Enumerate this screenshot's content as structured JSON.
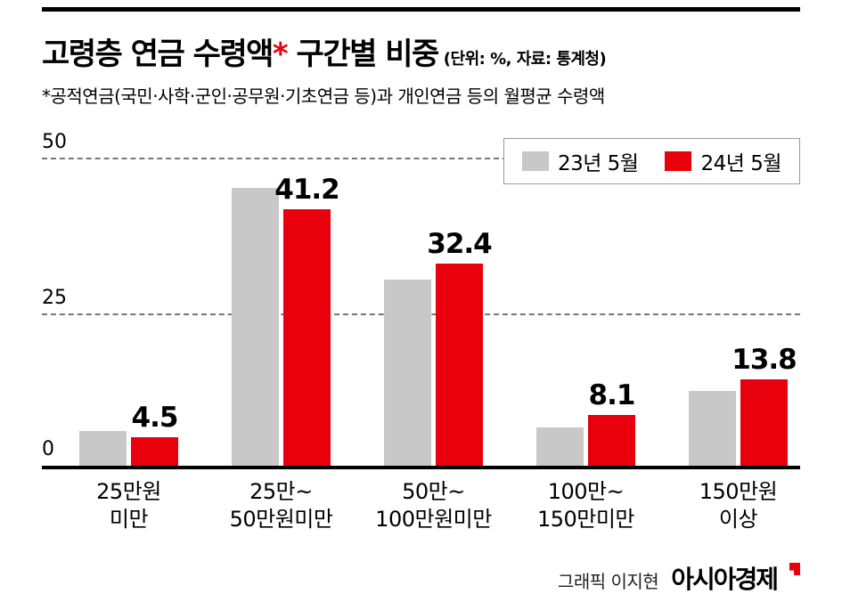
{
  "header": {
    "title_part1": "고령층 연금 수령액",
    "title_asterisk": "*",
    "title_part2": " 구간별 비중",
    "unit_note": "(단위: %, 자료: 통계청)",
    "footnote": "*공적연금(국민·사학·군인·공무원·기초연금 등)과 개인연금 등의 월평균 수령액"
  },
  "legend": {
    "items": [
      {
        "label": "23년 5월",
        "color": "#c8c8c8"
      },
      {
        "label": "24년 5월",
        "color": "#e8000d"
      }
    ]
  },
  "chart_data": {
    "type": "bar",
    "title": "고령층 연금 수령액 구간별 비중",
    "unit": "%",
    "source": "통계청",
    "categories": [
      [
        "25만원",
        "미만"
      ],
      [
        "25만~",
        "50만원미만"
      ],
      [
        "50만~",
        "100만원미만"
      ],
      [
        "100만~",
        "150만미만"
      ],
      [
        "150만원",
        "이상"
      ]
    ],
    "series": [
      {
        "name": "23년 5월",
        "color": "#c8c8c8",
        "labels_shown": false,
        "values": [
          5.5,
          44.6,
          29.8,
          6.2,
          12.0
        ]
      },
      {
        "name": "24년 5월",
        "color": "#e8000d",
        "labels_shown": true,
        "values": [
          4.5,
          41.2,
          32.4,
          8.1,
          13.8
        ]
      }
    ],
    "ylim": [
      0,
      50
    ],
    "yticks": [
      0,
      25,
      50
    ],
    "ytick_labels": [
      "0",
      "25",
      "50"
    ],
    "grid": "horizontal dashed at 25 and 50, solid axis at 0",
    "legend_position": "top-right"
  },
  "footer": {
    "credit": "그래픽 이지현",
    "brand": "아시아경제"
  }
}
